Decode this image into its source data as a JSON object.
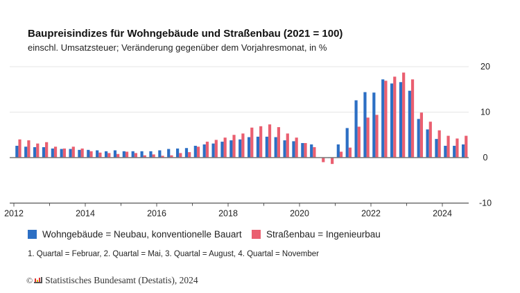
{
  "chart_data": {
    "type": "bar",
    "title": "Baupreisindizes für Wohngebäude und Straßenbau (2021 = 100)",
    "subtitle": "einschl. Umsatzsteuer; Veränderung gegenüber dem Vorjahresmonat, in %",
    "start_year": 2012,
    "frequency": "quarterly",
    "x_ticks": [
      "2012",
      "2014",
      "2016",
      "2018",
      "2020",
      "2022",
      "2024"
    ],
    "y_ticks": [
      "20",
      "10",
      "0",
      "-10"
    ],
    "ylim": [
      -10,
      20
    ],
    "grid": true,
    "y_axis_side": "right",
    "legend_placement": "bottom",
    "series": [
      {
        "name": "Wohngebäude = Neubau, konventionelle Bauart",
        "color": "#2c6fc4",
        "values": [
          2.6,
          2.4,
          2.3,
          2.3,
          2.0,
          1.9,
          1.9,
          1.7,
          1.7,
          1.6,
          1.4,
          1.6,
          1.4,
          1.4,
          1.4,
          1.4,
          1.6,
          1.9,
          2.0,
          2.1,
          2.6,
          2.9,
          3.1,
          3.5,
          3.8,
          4.0,
          4.5,
          4.6,
          4.6,
          4.5,
          3.8,
          3.6,
          3.2,
          2.9,
          0.0,
          -0.1,
          2.9,
          6.5,
          12.6,
          14.4,
          14.3,
          17.2,
          16.3,
          16.6,
          14.7,
          8.5,
          6.2,
          4.1,
          2.6,
          2.6,
          2.9
        ]
      },
      {
        "name": "Straßenbau = Ingenieurbau",
        "color": "#ea5f70",
        "values": [
          4.0,
          3.8,
          3.1,
          3.4,
          2.4,
          2.0,
          2.4,
          2.0,
          1.4,
          1.1,
          1.0,
          0.8,
          1.3,
          1.0,
          0.5,
          0.7,
          0.4,
          0.5,
          1.0,
          1.2,
          2.4,
          3.5,
          3.9,
          4.4,
          5.0,
          5.3,
          6.6,
          6.9,
          7.3,
          6.7,
          5.3,
          4.4,
          3.2,
          2.3,
          -1.0,
          -1.4,
          1.3,
          2.2,
          6.8,
          8.8,
          9.4,
          16.9,
          17.8,
          18.7,
          17.2,
          9.9,
          7.9,
          6.0,
          4.8,
          4.2,
          4.8
        ]
      }
    ],
    "footnote": "1. Quartal = Februar, 2. Quartal = Mai, 3. Quartal = August, 4. Quartal = November"
  },
  "source": "Statistisches Bundesamt (Destatis), 2024",
  "copyright_symbol": "©"
}
